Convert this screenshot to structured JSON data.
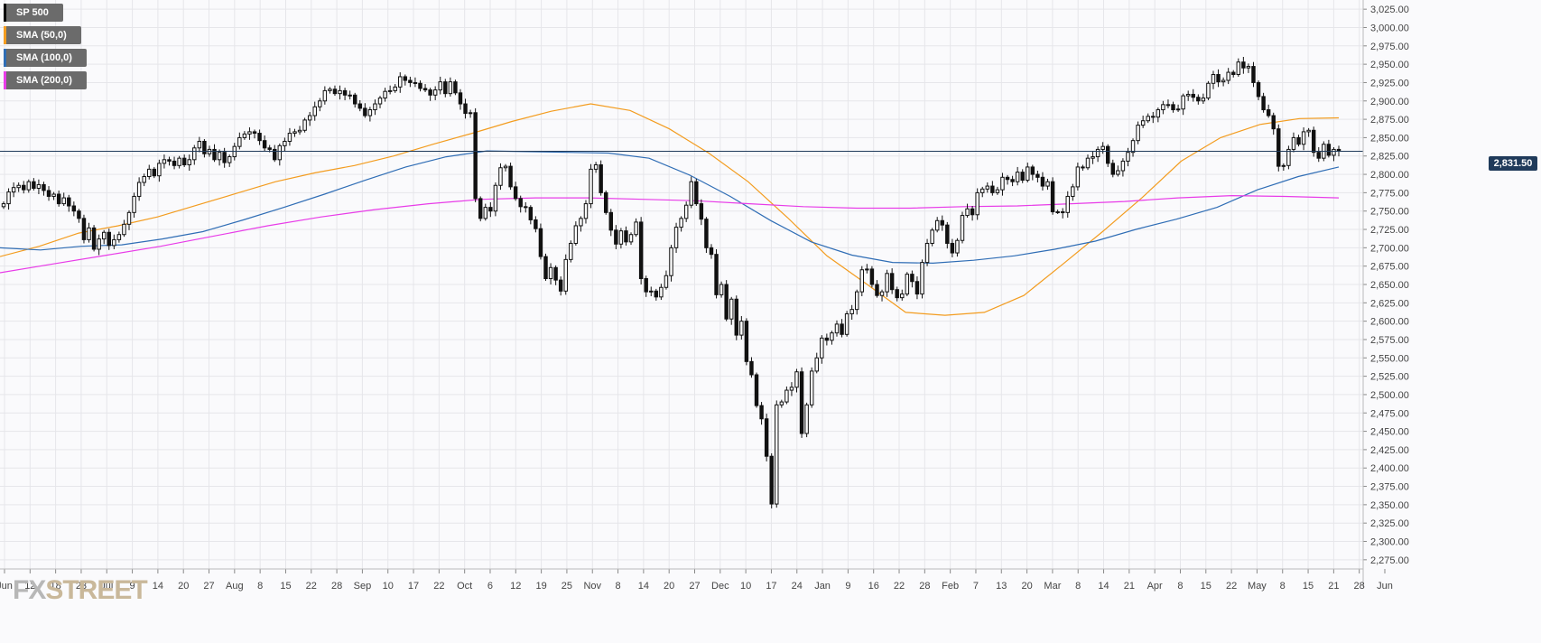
{
  "legend": {
    "items": [
      {
        "label": "SP 500",
        "color": "#000000"
      },
      {
        "label": "SMA (50,0)",
        "color": "#f39c1f"
      },
      {
        "label": "SMA (100,0)",
        "color": "#2f6db5"
      },
      {
        "label": "SMA (200,0)",
        "color": "#e83ce8"
      }
    ]
  },
  "logo": {
    "fx": "FX",
    "street": "STREET"
  },
  "last_price_label": "2,831.50",
  "chart_data": {
    "type": "candlestick",
    "instrument": "SP 500",
    "yaxis": {
      "ylim": [
        2262.5,
        3037.5
      ],
      "ticks": [
        3025,
        3000,
        2975,
        2950,
        2925,
        2900,
        2875,
        2850,
        2825,
        2800,
        2775,
        2750,
        2725,
        2700,
        2675,
        2650,
        2625,
        2600,
        2575,
        2550,
        2525,
        2500,
        2475,
        2450,
        2425,
        2400,
        2375,
        2350,
        2325,
        2300,
        2275
      ],
      "tick_labels": [
        "3,025.00",
        "3,000.00",
        "2,975.00",
        "2,950.00",
        "2,925.00",
        "2,900.00",
        "2,875.00",
        "2,850.00",
        "2,825.00",
        "2,800.00",
        "2,775.00",
        "2,750.00",
        "2,725.00",
        "2,700.00",
        "2,675.00",
        "2,650.00",
        "2,625.00",
        "2,600.00",
        "2,575.00",
        "2,550.00",
        "2,525.00",
        "2,500.00",
        "2,475.00",
        "2,450.00",
        "2,425.00",
        "2,400.00",
        "2,375.00",
        "2,350.00",
        "2,325.00",
        "2,300.00",
        "2,275.00"
      ],
      "side": "right"
    },
    "xaxis": {
      "tick_labels": [
        "Jun",
        "12",
        "18",
        "23",
        "Jul",
        "9",
        "14",
        "20",
        "27",
        "Aug",
        "8",
        "15",
        "22",
        "28",
        "Sep",
        "10",
        "17",
        "22",
        "Oct",
        "6",
        "12",
        "19",
        "25",
        "Nov",
        "8",
        "14",
        "20",
        "27",
        "Dec",
        "10",
        "17",
        "24",
        "Jan",
        "9",
        "16",
        "22",
        "28",
        "Feb",
        "7",
        "13",
        "20",
        "Mar",
        "8",
        "14",
        "21",
        "Apr",
        "8",
        "15",
        "22",
        "May",
        "8",
        "15",
        "21",
        "28",
        "Jun"
      ]
    },
    "grid": true,
    "last_price": 2831.5,
    "candles_close": [
      2760,
      2776,
      2782,
      2785,
      2779,
      2790,
      2781,
      2786,
      2778,
      2770,
      2773,
      2760,
      2768,
      2757,
      2750,
      2740,
      2711,
      2727,
      2698,
      2712,
      2721,
      2703,
      2711,
      2718,
      2732,
      2748,
      2770,
      2789,
      2797,
      2807,
      2798,
      2815,
      2820,
      2818,
      2812,
      2822,
      2813,
      2820,
      2836,
      2845,
      2828,
      2834,
      2820,
      2830,
      2816,
      2824,
      2838,
      2850,
      2855,
      2858,
      2856,
      2846,
      2836,
      2834,
      2820,
      2839,
      2845,
      2856,
      2858,
      2860,
      2874,
      2880,
      2892,
      2900,
      2914,
      2916,
      2910,
      2914,
      2908,
      2908,
      2896,
      2890,
      2880,
      2888,
      2896,
      2904,
      2913,
      2914,
      2919,
      2933,
      2928,
      2925,
      2924,
      2917,
      2915,
      2908,
      2915,
      2926,
      2910,
      2926,
      2911,
      2896,
      2883,
      2884,
      2767,
      2740,
      2755,
      2750,
      2785,
      2809,
      2811,
      2783,
      2767,
      2756,
      2755,
      2738,
      2726,
      2688,
      2658,
      2673,
      2656,
      2641,
      2684,
      2706,
      2730,
      2740,
      2760,
      2807,
      2813,
      2775,
      2748,
      2724,
      2705,
      2723,
      2708,
      2718,
      2735,
      2658,
      2640,
      2641,
      2633,
      2646,
      2662,
      2700,
      2728,
      2740,
      2758,
      2790,
      2760,
      2739,
      2700,
      2691,
      2636,
      2650,
      2603,
      2630,
      2581,
      2600,
      2545,
      2527,
      2485,
      2467,
      2416,
      2351,
      2486,
      2490,
      2506,
      2510,
      2531,
      2447,
      2486,
      2532,
      2550,
      2577,
      2574,
      2584,
      2596,
      2582,
      2610,
      2616,
      2640,
      2670,
      2671,
      2650,
      2635,
      2640,
      2665,
      2643,
      2632,
      2637,
      2664,
      2654,
      2637,
      2680,
      2706,
      2724,
      2737,
      2731,
      2706,
      2693,
      2710,
      2744,
      2753,
      2745,
      2775,
      2780,
      2784,
      2775,
      2779,
      2796,
      2793,
      2790,
      2803,
      2792,
      2810,
      2800,
      2796,
      2784,
      2790,
      2749,
      2749,
      2748,
      2770,
      2783,
      2810,
      2809,
      2822,
      2824,
      2834,
      2838,
      2815,
      2800,
      2805,
      2818,
      2830,
      2846,
      2867,
      2873,
      2879,
      2878,
      2888,
      2895,
      2895,
      2888,
      2889,
      2907,
      2909,
      2905,
      2900,
      2904,
      2924,
      2936,
      2926,
      2928,
      2939,
      2936,
      2953,
      2945,
      2947,
      2925,
      2906,
      2888,
      2880,
      2862,
      2811,
      2812,
      2834,
      2850,
      2841,
      2858,
      2860,
      2830,
      2822,
      2841,
      2826,
      2834,
      2831.5
    ],
    "series": [
      {
        "name": "SMA (50,0)",
        "color": "#f39c1f",
        "values": [
          2688,
          2702,
          2720,
          2730,
          2742,
          2758,
          2774,
          2790,
          2802,
          2812,
          2825,
          2841,
          2856,
          2872,
          2886,
          2896,
          2887,
          2862,
          2829,
          2790,
          2741,
          2689,
          2651,
          2612,
          2608,
          2612,
          2635,
          2678,
          2722,
          2768,
          2818,
          2850,
          2868,
          2876,
          2877
        ]
      },
      {
        "name": "SMA (100,0)",
        "color": "#2f6db5",
        "values": [
          2700,
          2697,
          2702,
          2704,
          2712,
          2722,
          2738,
          2755,
          2773,
          2792,
          2810,
          2824,
          2832,
          2831,
          2830,
          2829,
          2822,
          2799,
          2770,
          2737,
          2708,
          2690,
          2680,
          2679,
          2683,
          2689,
          2698,
          2709,
          2725,
          2739,
          2755,
          2779,
          2797,
          2810
        ]
      },
      {
        "name": "SMA (200,0)",
        "color": "#e83ce8",
        "values": [
          2666,
          2678,
          2690,
          2702,
          2716,
          2730,
          2742,
          2752,
          2760,
          2766,
          2768,
          2768,
          2766,
          2764,
          2760,
          2756,
          2754,
          2754,
          2756,
          2757,
          2760,
          2763,
          2768,
          2771,
          2770,
          2768
        ]
      }
    ]
  }
}
